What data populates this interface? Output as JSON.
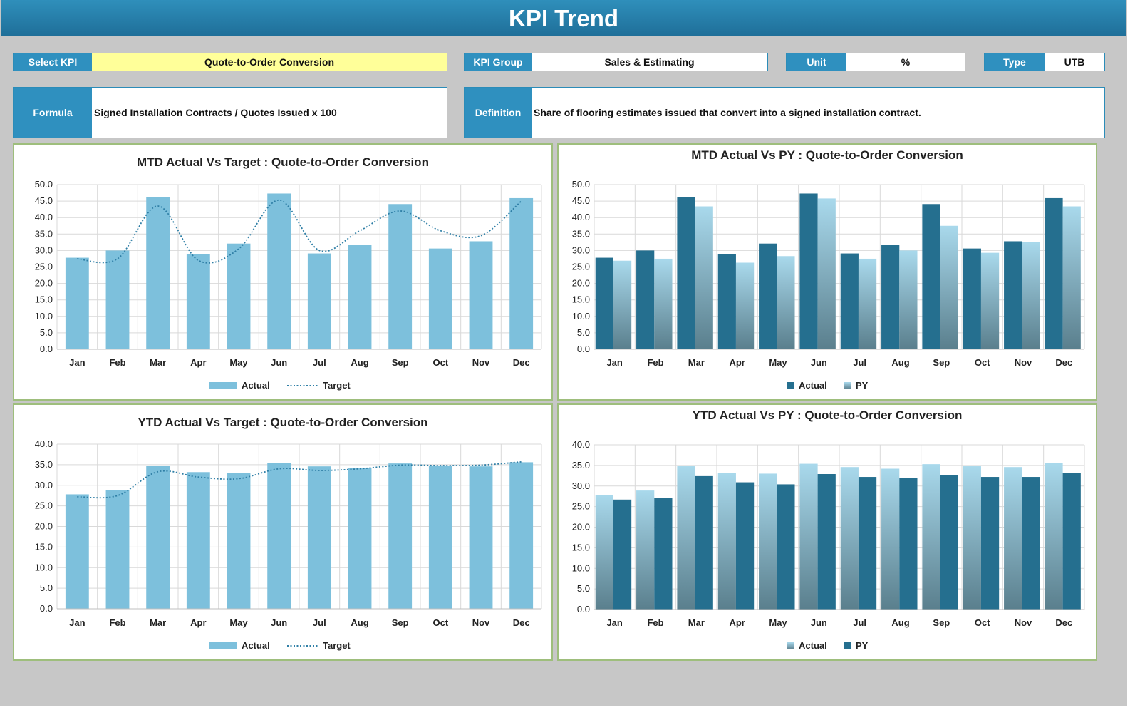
{
  "header": {
    "title": "KPI Trend"
  },
  "fields": {
    "select_kpi": {
      "label": "Select KPI",
      "value": "Quote-to-Order Conversion"
    },
    "kpi_group": {
      "label": "KPI Group",
      "value": "Sales & Estimating"
    },
    "unit": {
      "label": "Unit",
      "value": "%"
    },
    "type": {
      "label": "Type",
      "value": "UTB"
    },
    "formula": {
      "label": "Formula",
      "value": "Signed Installation Contracts / Quotes Issued x 100"
    },
    "definition": {
      "label": "Definition",
      "value": "Share of flooring estimates issued that convert into a signed installation contract."
    }
  },
  "colors": {
    "header": "#1f6f99",
    "label_bg": "#2f90bf",
    "select_highlight": "#ffff99",
    "actual_light": "#7dc0dc",
    "actual_dark": "#256f8f",
    "py_light": "#a9d9ec",
    "target_line": "#2f7fa6",
    "panel_border": "#9ebe7c"
  },
  "chart_data": [
    {
      "id": "mtd_target",
      "type": "bar",
      "title": "MTD Actual Vs Target : Quote-to-Order Conversion",
      "categories": [
        "Jan",
        "Feb",
        "Mar",
        "Apr",
        "May",
        "Jun",
        "Jul",
        "Aug",
        "Sep",
        "Oct",
        "Nov",
        "Dec"
      ],
      "ylim": [
        0,
        50
      ],
      "yticks": [
        "0.0",
        "5.0",
        "10.0",
        "15.0",
        "20.0",
        "25.0",
        "30.0",
        "35.0",
        "40.0",
        "45.0",
        "50.0"
      ],
      "grid": true,
      "legend_position": "bottom",
      "series": [
        {
          "name": "Actual",
          "kind": "bar",
          "style": "flat-light",
          "values": [
            27.8,
            30.0,
            46.3,
            28.8,
            32.1,
            47.3,
            29.1,
            31.8,
            44.1,
            30.6,
            32.8,
            45.9
          ]
        },
        {
          "name": "Target",
          "kind": "dotted-line",
          "values": [
            27.5,
            27.5,
            43.5,
            27.0,
            30.5,
            45.3,
            30.0,
            36.0,
            42.0,
            36.0,
            34.5,
            45.0
          ]
        }
      ]
    },
    {
      "id": "mtd_py",
      "type": "bar",
      "title": "MTD Actual Vs PY : Quote-to-Order Conversion",
      "categories": [
        "Jan",
        "Feb",
        "Mar",
        "Apr",
        "May",
        "Jun",
        "Jul",
        "Aug",
        "Sep",
        "Oct",
        "Nov",
        "Dec"
      ],
      "ylim": [
        0,
        50
      ],
      "yticks": [
        "0.0",
        "5.0",
        "10.0",
        "15.0",
        "20.0",
        "25.0",
        "30.0",
        "35.0",
        "40.0",
        "45.0",
        "50.0"
      ],
      "grid": true,
      "legend_position": "bottom",
      "series": [
        {
          "name": "Actual",
          "kind": "bar",
          "style": "dark",
          "values": [
            27.8,
            30.0,
            46.3,
            28.8,
            32.1,
            47.3,
            29.1,
            31.8,
            44.1,
            30.6,
            32.8,
            45.9
          ]
        },
        {
          "name": "PY",
          "kind": "bar",
          "style": "gradient-light",
          "values": [
            26.9,
            27.5,
            43.4,
            26.3,
            28.3,
            45.8,
            27.5,
            30.0,
            37.5,
            29.3,
            32.6,
            43.4
          ]
        }
      ]
    },
    {
      "id": "ytd_target",
      "type": "bar",
      "title": "YTD Actual Vs Target : Quote-to-Order Conversion",
      "categories": [
        "Jan",
        "Feb",
        "Mar",
        "Apr",
        "May",
        "Jun",
        "Jul",
        "Aug",
        "Sep",
        "Oct",
        "Nov",
        "Dec"
      ],
      "ylim": [
        0,
        40
      ],
      "yticks": [
        "0.0",
        "5.0",
        "10.0",
        "15.0",
        "20.0",
        "25.0",
        "30.0",
        "35.0",
        "40.0"
      ],
      "grid": true,
      "legend_position": "bottom",
      "series": [
        {
          "name": "Actual",
          "kind": "bar",
          "style": "flat-light",
          "values": [
            27.8,
            28.9,
            34.8,
            33.2,
            33.0,
            35.4,
            34.6,
            34.2,
            35.3,
            34.8,
            34.6,
            35.6
          ]
        },
        {
          "name": "Target",
          "kind": "dotted-line",
          "values": [
            27.2,
            27.5,
            33.3,
            32.0,
            31.6,
            34.0,
            33.6,
            34.0,
            34.9,
            34.8,
            34.9,
            35.7
          ]
        }
      ]
    },
    {
      "id": "ytd_py",
      "type": "bar",
      "title": "YTD Actual Vs PY : Quote-to-Order Conversion",
      "categories": [
        "Jan",
        "Feb",
        "Mar",
        "Apr",
        "May",
        "Jun",
        "Jul",
        "Aug",
        "Sep",
        "Oct",
        "Nov",
        "Dec"
      ],
      "ylim": [
        0,
        40
      ],
      "yticks": [
        "0.0",
        "5.0",
        "10.0",
        "15.0",
        "20.0",
        "25.0",
        "30.0",
        "35.0",
        "40.0"
      ],
      "grid": true,
      "legend_position": "bottom",
      "series": [
        {
          "name": "Actual",
          "kind": "bar",
          "style": "gradient-light",
          "values": [
            27.8,
            28.9,
            34.8,
            33.2,
            33.0,
            35.4,
            34.6,
            34.2,
            35.3,
            34.8,
            34.6,
            35.6
          ]
        },
        {
          "name": "PY",
          "kind": "bar",
          "style": "dark",
          "values": [
            26.7,
            27.1,
            32.4,
            30.9,
            30.4,
            32.9,
            32.2,
            31.9,
            32.6,
            32.2,
            32.2,
            33.2
          ]
        }
      ]
    }
  ]
}
